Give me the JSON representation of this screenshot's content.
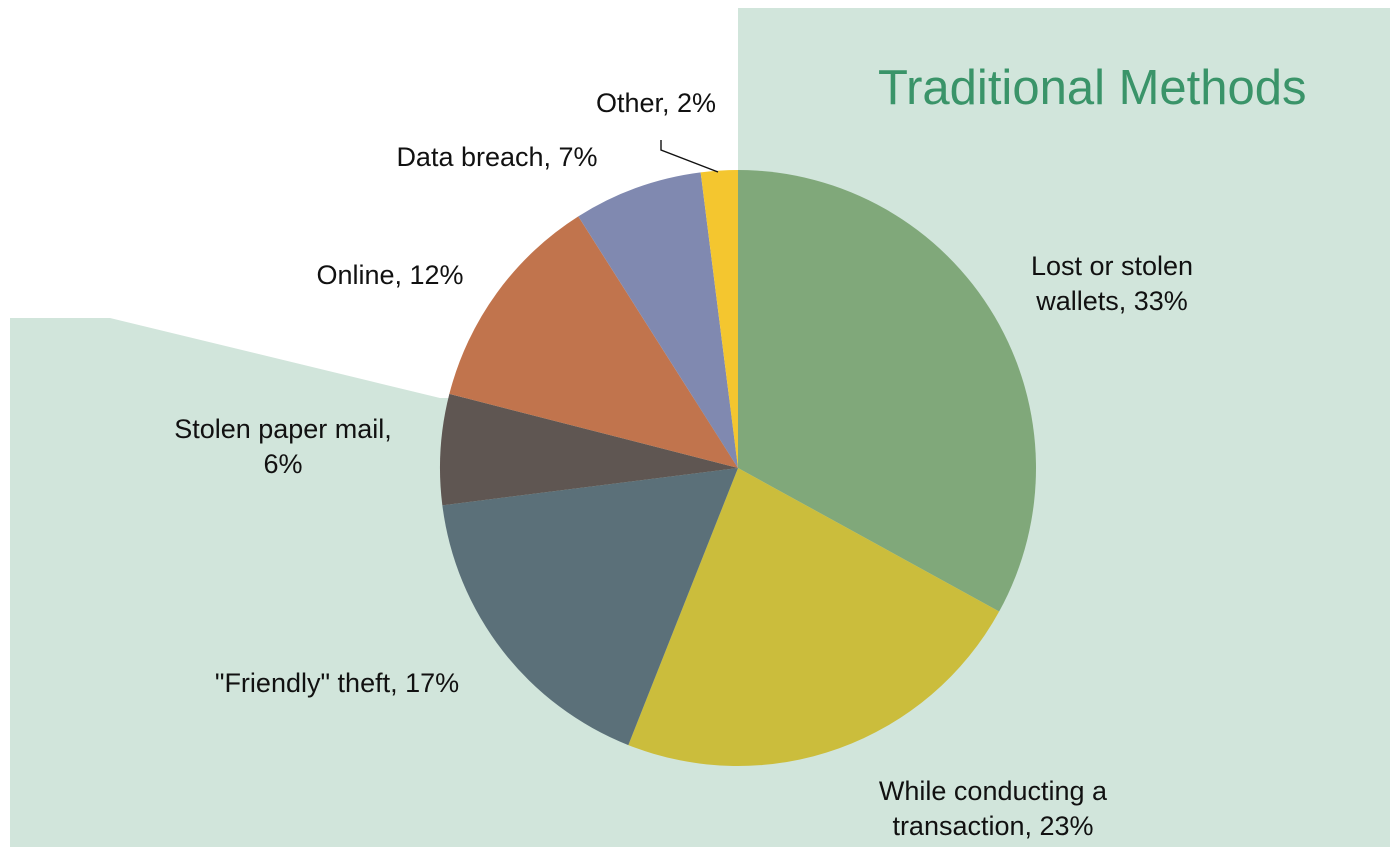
{
  "callout": {
    "title": "Traditional Methods"
  },
  "colors": {
    "callout_bg": "#d1e5db",
    "callout_title": "#3a9469"
  },
  "chart_data": {
    "type": "pie",
    "title": "",
    "start": "12 o'clock, clockwise",
    "slices": [
      {
        "label": "Lost or stolen wallets",
        "value": 33,
        "color": "#80a87a",
        "label_lines": [
          "Lost or stolen",
          "wallets, 33%"
        ]
      },
      {
        "label": "While conducting a transaction",
        "value": 23,
        "color": "#cbbd3c",
        "label_lines": [
          "While conducting a",
          "transaction, 23%"
        ]
      },
      {
        "label": "\"Friendly\" theft",
        "value": 17,
        "color": "#5b7079",
        "label_lines": [
          "\"Friendly\" theft, 17%"
        ]
      },
      {
        "label": "Stolen paper mail",
        "value": 6,
        "color": "#5f5652",
        "label_lines": [
          "Stolen paper mail,",
          "6%"
        ]
      },
      {
        "label": "Online",
        "value": 12,
        "color": "#c1744d",
        "label_lines": [
          "Online, 12%"
        ]
      },
      {
        "label": "Data breach",
        "value": 7,
        "color": "#8089b0",
        "label_lines": [
          "Data breach, 7%"
        ]
      },
      {
        "label": "Other",
        "value": 2,
        "color": "#f4c62f",
        "label_lines": [
          "Other, 2%"
        ]
      }
    ]
  }
}
